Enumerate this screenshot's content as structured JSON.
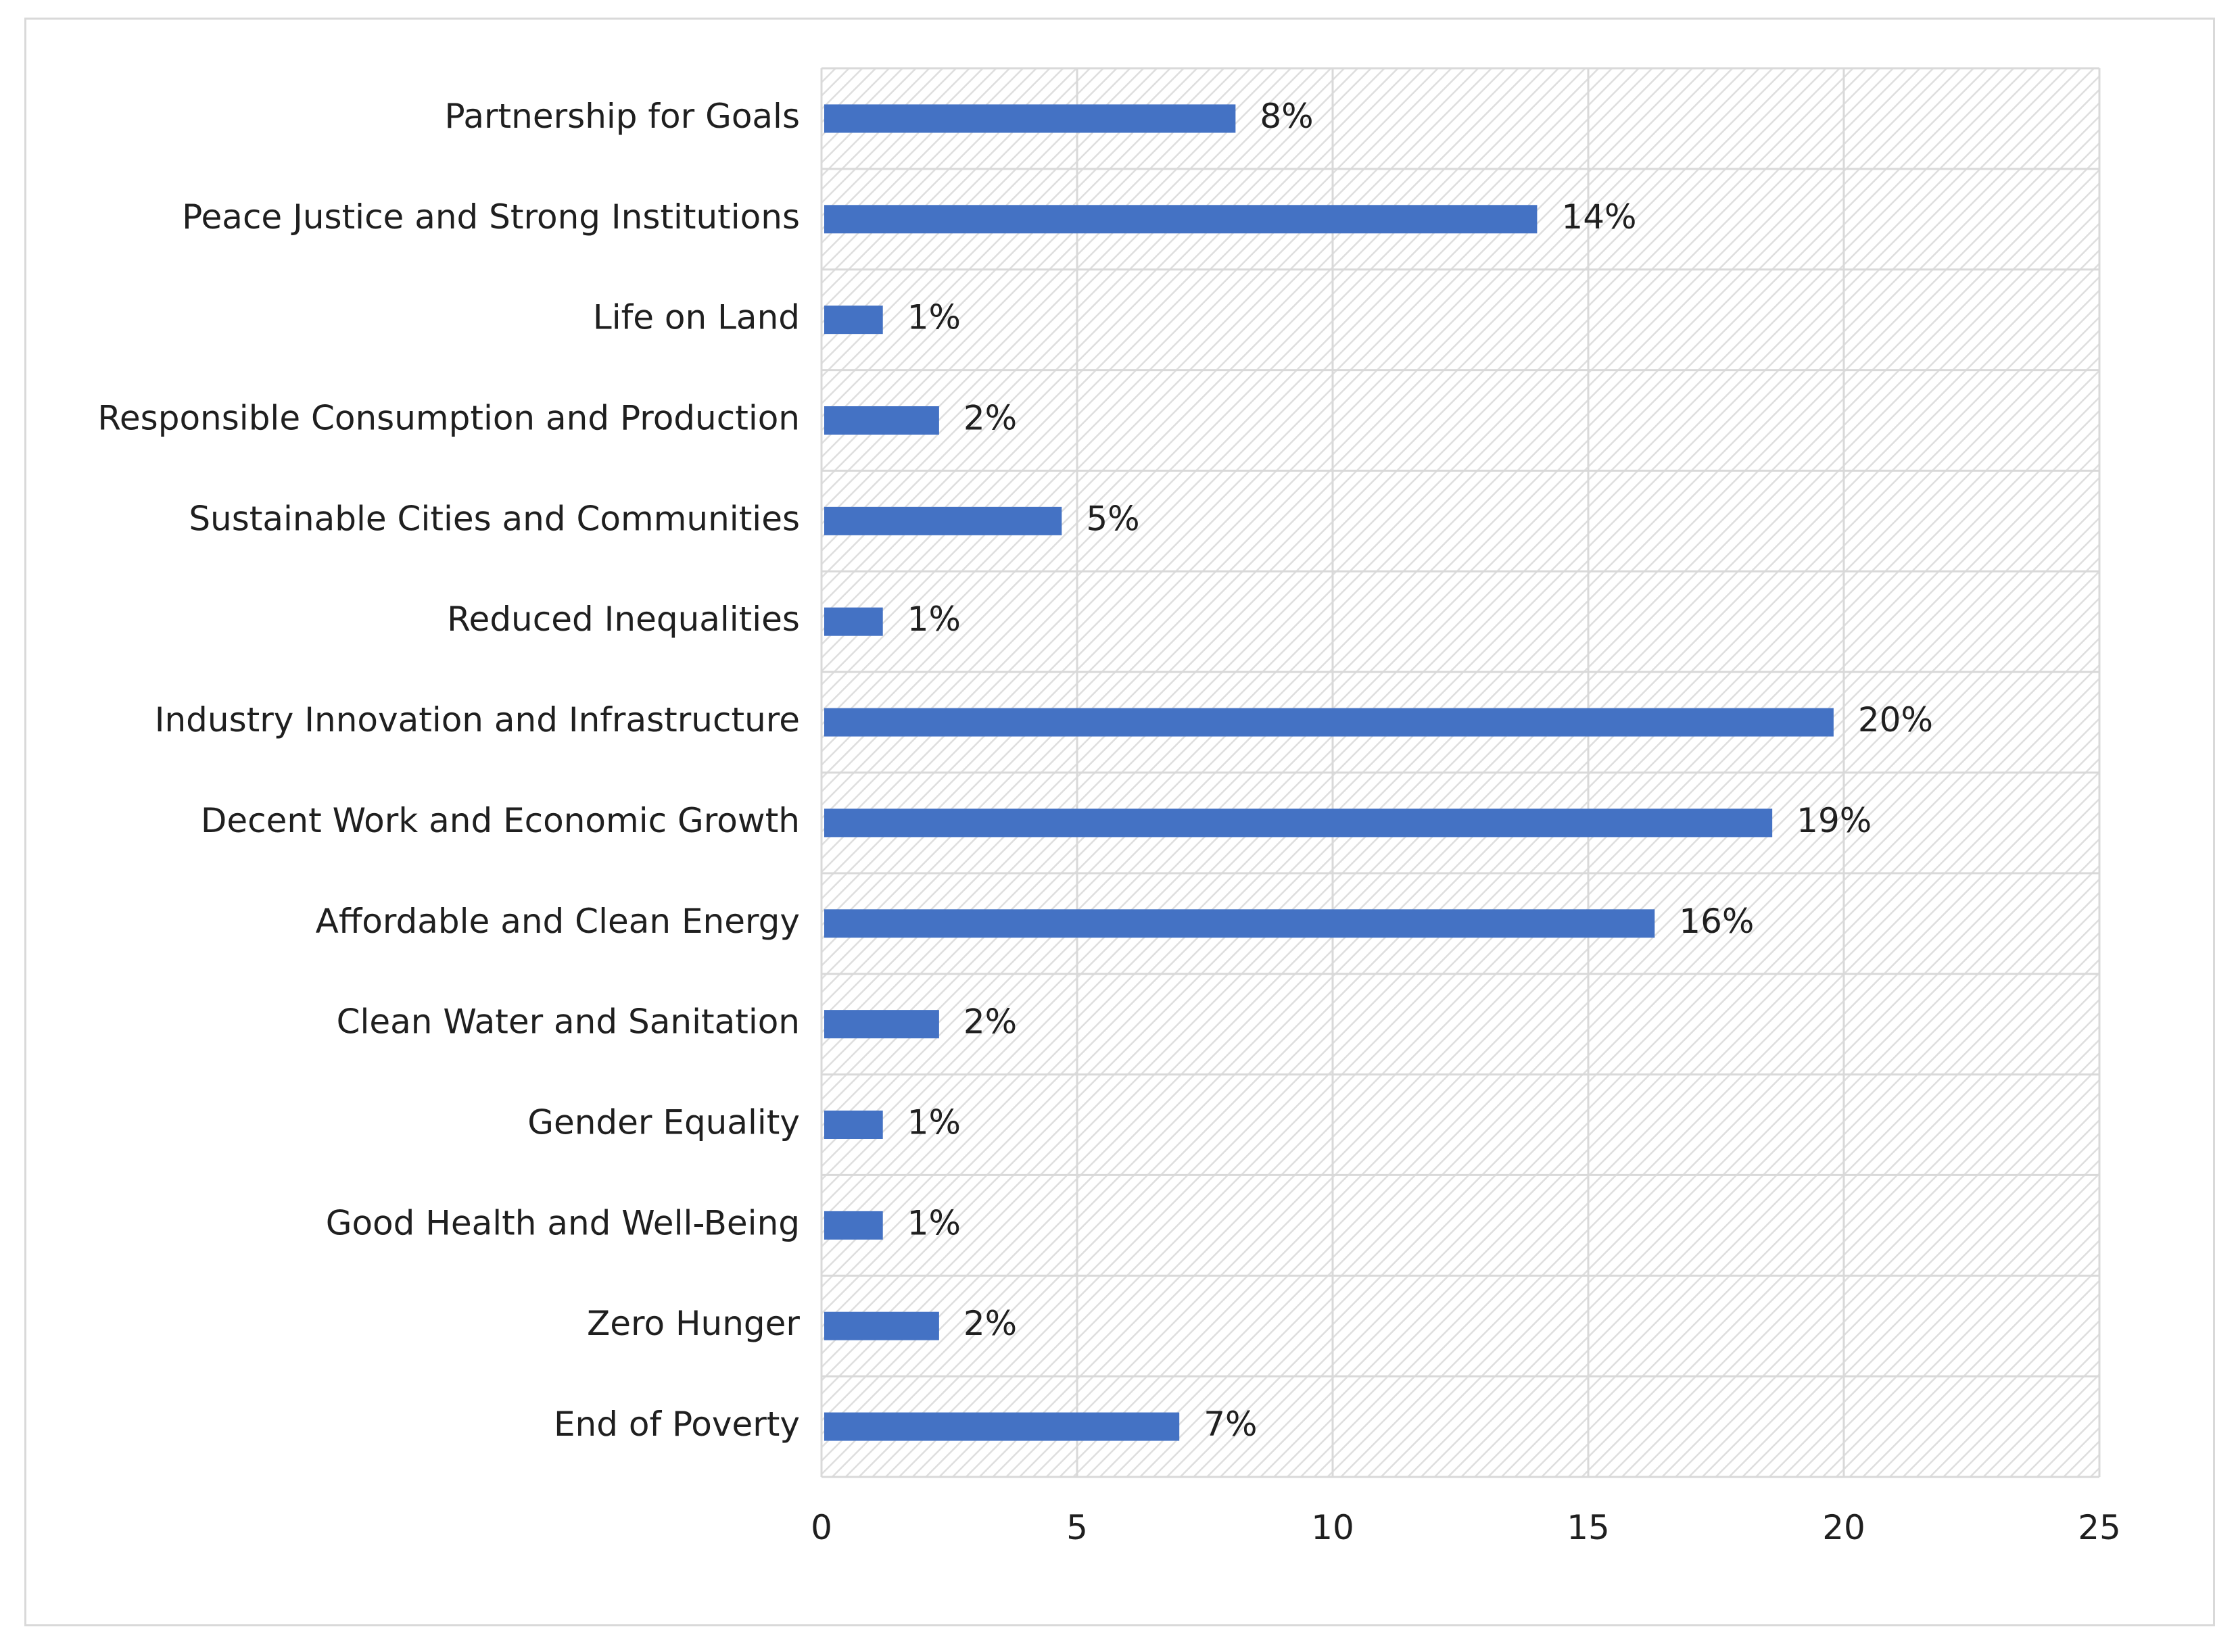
{
  "chart_data": {
    "type": "bar",
    "orientation": "horizontal",
    "title": "",
    "xlabel": "",
    "ylabel": "",
    "categories": [
      "Partnership for Goals",
      "Peace Justice and Strong Institutions",
      "Life on Land",
      "Responsible Consumption and Production",
      "Sustainable Cities and Communities",
      "Reduced Inequalities",
      "Industry Innovation and Infrastructure",
      "Decent Work and Economic Growth",
      "Affordable and Clean Energy",
      "Clean Water and Sanitation",
      "Gender Equality",
      "Good Health and Well-Being",
      "Zero Hunger",
      "End of Poverty"
    ],
    "values": [
      8.1,
      14,
      1.2,
      2.3,
      4.7,
      1.2,
      19.8,
      18.6,
      16.3,
      2.3,
      1.2,
      1.2,
      2.3,
      7
    ],
    "data_labels": [
      "8%",
      "14%",
      "1%",
      "2%",
      "5%",
      "1%",
      "20%",
      "19%",
      "16%",
      "2%",
      "1%",
      "1%",
      "2%",
      "7%"
    ],
    "xlim": [
      0,
      25
    ],
    "xticks": [
      0,
      5,
      10,
      15,
      20,
      25
    ],
    "xtick_labels": [
      "0",
      "5",
      "10",
      "15",
      "20",
      "25"
    ],
    "grid": true,
    "legend": "none",
    "colors": {
      "bar": "#4472c4",
      "grid": "#d9d9d9",
      "hatch": "#dcdcdc",
      "text": "#1f1f1f"
    }
  }
}
